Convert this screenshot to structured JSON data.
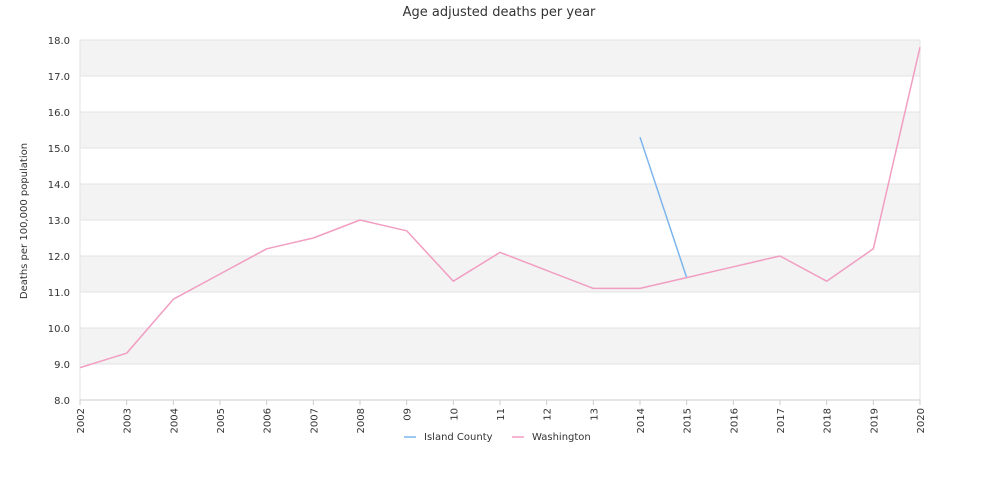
{
  "chart_data": {
    "type": "line",
    "title": "Age adjusted deaths per year",
    "ylabel": "Deaths per 100,000 population",
    "xlabel": "",
    "ylim": [
      8.0,
      18.0
    ],
    "y_ticks": [
      "8.0",
      "9.0",
      "10.0",
      "11.0",
      "12.0",
      "13.0",
      "14.0",
      "15.0",
      "16.0",
      "17.0",
      "18.0"
    ],
    "categories": [
      "2002",
      "2003",
      "2004",
      "2005",
      "2006",
      "2007",
      "2008",
      "09",
      "10",
      "11",
      "12",
      "13",
      "2014",
      "2015",
      "2016",
      "2017",
      "2018",
      "2019",
      "2020"
    ],
    "grid": true,
    "legend_position": "bottom",
    "series": [
      {
        "name": "Island County",
        "color": "#7cb5ec",
        "values": [
          null,
          null,
          null,
          null,
          null,
          null,
          null,
          null,
          null,
          null,
          null,
          null,
          15.3,
          11.4,
          null,
          null,
          null,
          null,
          null
        ]
      },
      {
        "name": "Washington",
        "color": "#f19ec2",
        "values": [
          8.9,
          9.3,
          10.8,
          11.5,
          12.2,
          12.5,
          13.0,
          12.7,
          11.3,
          12.1,
          11.6,
          11.1,
          11.1,
          11.4,
          11.7,
          12.0,
          11.3,
          12.2,
          17.8
        ]
      }
    ]
  }
}
